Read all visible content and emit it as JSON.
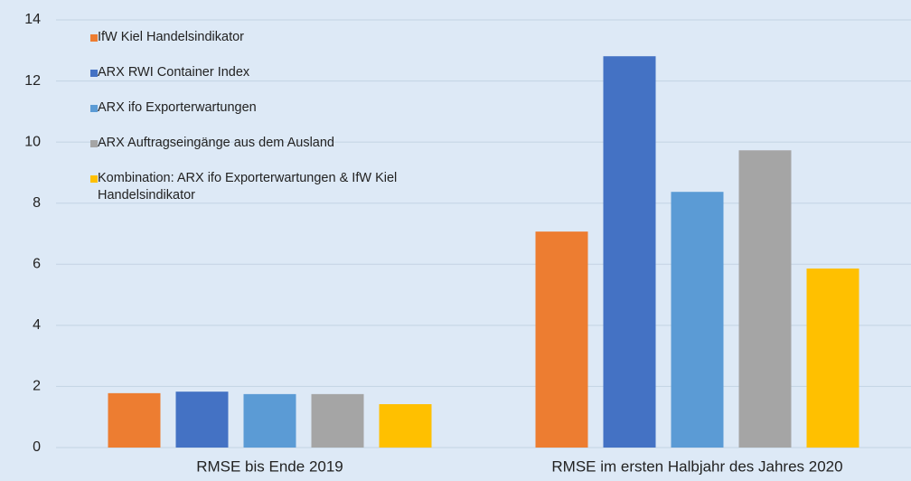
{
  "chart_data": {
    "type": "bar",
    "categories": [
      "RMSE bis Ende 2019",
      "RMSE im ersten Halbjahr des Jahres 2020"
    ],
    "series": [
      {
        "name": "IfW Kiel Handelsindikator",
        "color": "#ed7d31",
        "values": [
          1.78,
          7.07
        ]
      },
      {
        "name": "ARX RWI Container Index",
        "color": "#4472c4",
        "values": [
          1.83,
          12.81
        ]
      },
      {
        "name": "ARX ifo Exporterwartungen",
        "color": "#5b9bd5",
        "values": [
          1.75,
          8.37
        ]
      },
      {
        "name": "ARX Auftragseingänge aus dem Ausland",
        "color": "#a5a5a5",
        "values": [
          1.75,
          9.73
        ]
      },
      {
        "name": "Kombination: ARX ifo Exporterwartungen & IfW Kiel Handelsindikator",
        "color": "#ffc000",
        "values": [
          1.42,
          5.86
        ]
      }
    ],
    "ylim": [
      0,
      14
    ],
    "yticks": [
      0,
      2,
      4,
      6,
      8,
      10,
      12,
      14
    ],
    "grid": true,
    "legend": "upper left"
  }
}
